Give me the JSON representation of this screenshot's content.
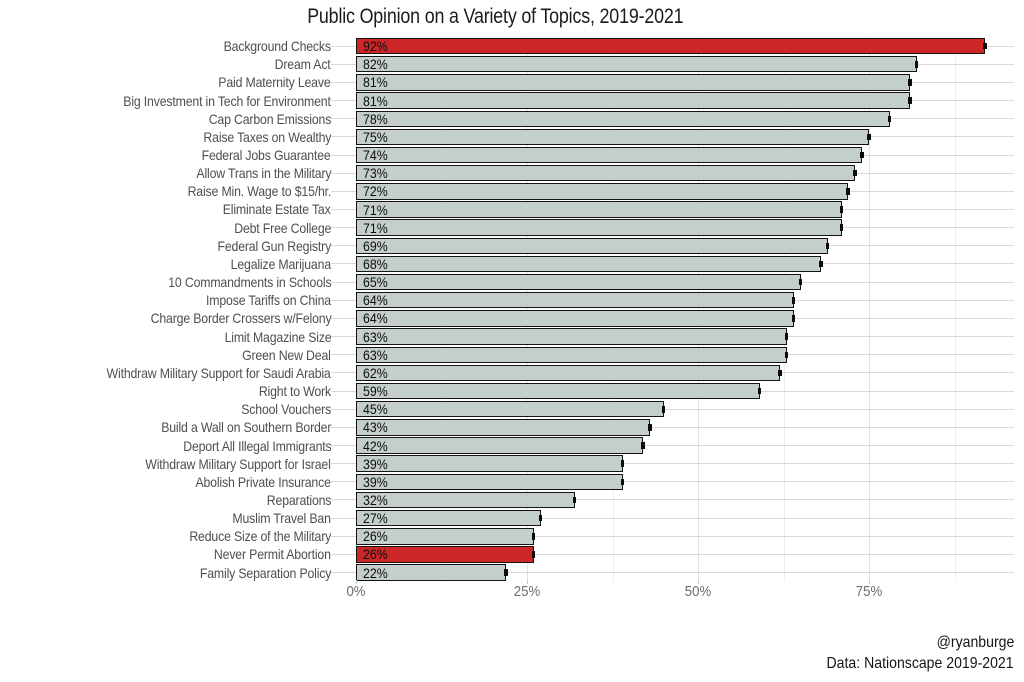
{
  "title": "Public Opinion on a Variety of Topics, 2019-2021",
  "caption": {
    "line1": "@ryanburge",
    "line2": "Data: Nationscape 2019-2021"
  },
  "colors": {
    "bar_default": "#c4cecd",
    "bar_highlight": "#cc2627",
    "bar_border": "#141414",
    "gridline_major": "#e2e2e2",
    "gridline_minor": "#efefef",
    "axis_text": "#6e6e6e"
  },
  "x_axis": {
    "tick_labels": [
      "0%",
      "25%",
      "50%",
      "75%"
    ],
    "tick_values": [
      0,
      25,
      50,
      75
    ],
    "minor_values": [
      12.5,
      37.5,
      62.5,
      87.5
    ]
  },
  "chart_data": {
    "type": "bar",
    "orientation": "horizontal",
    "title": "Public Opinion on a Variety of Topics, 2019-2021",
    "xlabel": "",
    "ylabel": "",
    "xlim": [
      0,
      96
    ],
    "unit": "%",
    "grid": true,
    "categories": [
      "Background Checks",
      "Dream Act",
      "Paid Maternity Leave",
      "Big Investment in Tech for Environment",
      "Cap Carbon Emissions",
      "Raise Taxes on Wealthy",
      "Federal Jobs Guarantee",
      "Allow Trans in the Military",
      "Raise Min. Wage to $15/hr.",
      "Eliminate Estate Tax",
      "Debt Free College",
      "Federal Gun Registry",
      "Legalize Marijuana",
      "10 Commandments in Schools",
      "Impose Tariffs on China",
      "Charge Border Crossers w/Felony",
      "Limit Magazine Size",
      "Green New Deal",
      "Withdraw Military Support for Saudi Arabia",
      "Right to Work",
      "School Vouchers",
      "Build a Wall on Southern Border",
      "Deport All Illegal Immigrants",
      "Withdraw Military Support for Israel",
      "Abolish Private Insurance",
      "Reparations",
      "Muslim Travel Ban",
      "Reduce Size of the Military",
      "Never Permit Abortion",
      "Family Separation Policy"
    ],
    "values": [
      92,
      82,
      81,
      81,
      78,
      75,
      74,
      73,
      72,
      71,
      71,
      69,
      68,
      65,
      64,
      64,
      63,
      63,
      62,
      59,
      45,
      43,
      42,
      39,
      39,
      32,
      27,
      26,
      26,
      22
    ],
    "highlighted_categories": [
      "Background Checks",
      "Never Permit Abortion"
    ]
  }
}
